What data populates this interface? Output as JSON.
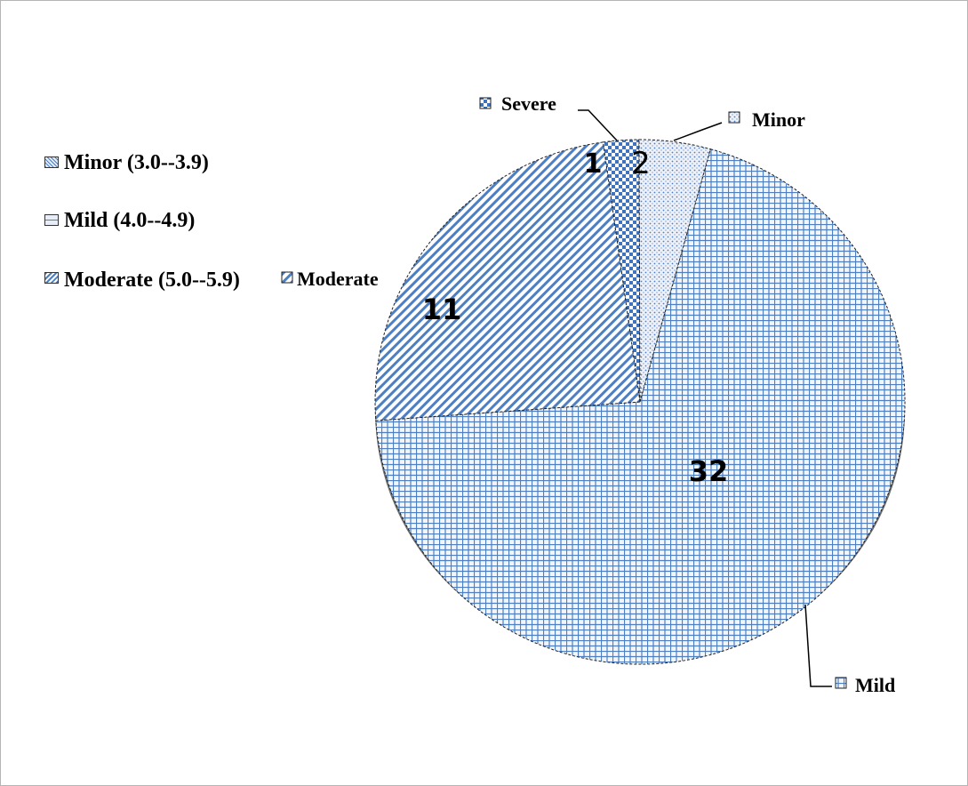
{
  "colors": {
    "line": "#4d7fc2",
    "light": "#f4f6f9",
    "shadow": "#6e6e6e",
    "text": "#000000"
  },
  "legend": [
    {
      "label": "Minor (3.0--3.9)",
      "pattern": "dots"
    },
    {
      "label": "Mild (4.0--4.9)",
      "pattern": "grid"
    },
    {
      "label": "Moderate (5.0--5.9)",
      "pattern": "diagonal"
    }
  ],
  "chart_data": {
    "type": "pie",
    "title": "",
    "slices": [
      {
        "name": "Severe",
        "value": 1,
        "data_label": "1",
        "pattern": "checker"
      },
      {
        "name": "Minor",
        "value": 2,
        "data_label": "2",
        "pattern": "dots"
      },
      {
        "name": "Mild",
        "value": 32,
        "data_label": "32",
        "pattern": "grid"
      },
      {
        "name": "Moderate",
        "value": 11,
        "data_label": "11",
        "pattern": "diagonal"
      }
    ],
    "category_labels": [
      "Severe",
      "Minor",
      "Mild",
      "Moderate"
    ],
    "legend_position": "left"
  }
}
